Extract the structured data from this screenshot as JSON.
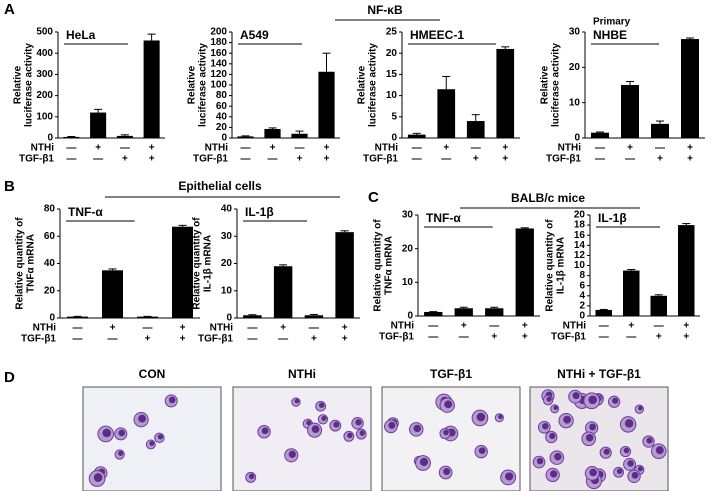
{
  "panel_labels": [
    "A",
    "B",
    "C",
    "D"
  ],
  "groups": [
    "NF-κB",
    "Epithelial cells",
    "BALB/c mice"
  ],
  "images": [
    {
      "label": "CON"
    },
    {
      "label": "NTHi"
    },
    {
      "label": "TGF-β1"
    },
    {
      "label": "NTHi + TGF-β1"
    }
  ],
  "chart_data": [
    {
      "type": "bar",
      "title": "HeLa",
      "ylabel": [
        "Relative",
        "luciferase activity"
      ],
      "color": "#000000",
      "conditions": [
        {
          "name": "NTHi",
          "values": [
            "—",
            "+",
            "—",
            "+"
          ]
        },
        {
          "name": "TGF-β1",
          "values": [
            "—",
            "—",
            "+",
            "+"
          ]
        }
      ],
      "values": [
        5,
        120,
        10,
        460
      ],
      "errors": [
        2,
        15,
        5,
        30
      ],
      "ylim": [
        0,
        500
      ],
      "yticks": [
        0,
        100,
        200,
        300,
        400,
        500
      ]
    },
    {
      "type": "bar",
      "title": "A549",
      "ylabel": [
        "Relative",
        "luciferase activity"
      ],
      "color": "#000000",
      "conditions": [
        {
          "name": "NTHi",
          "values": [
            "—",
            "+",
            "—",
            "+"
          ]
        },
        {
          "name": "TGF-β1",
          "values": [
            "—",
            "—",
            "+",
            "+"
          ]
        }
      ],
      "values": [
        3,
        17,
        8,
        125
      ],
      "errors": [
        1,
        2,
        5,
        35
      ],
      "ylim": [
        0,
        200
      ],
      "yticks": [
        0,
        20,
        40,
        60,
        80,
        100,
        120,
        140,
        160,
        180,
        200
      ]
    },
    {
      "type": "bar",
      "title": "HMEEC-1",
      "ylabel": [
        "Relative",
        "luciferase activity"
      ],
      "color": "#000000",
      "conditions": [
        {
          "name": "NTHi",
          "values": [
            "—",
            "+",
            "—",
            "+"
          ]
        },
        {
          "name": "TGF-β1",
          "values": [
            "—",
            "—",
            "+",
            "+"
          ]
        }
      ],
      "values": [
        0.8,
        11.5,
        4,
        21
      ],
      "errors": [
        0.3,
        3,
        1.5,
        0.5
      ],
      "ylim": [
        0,
        25
      ],
      "yticks": [
        0,
        5,
        10,
        15,
        20,
        25
      ]
    },
    {
      "type": "bar",
      "title": "NHBE",
      "subtitle": "Primary",
      "ylabel": [
        "Relative",
        "luciferase activity"
      ],
      "color": "#000000",
      "conditions": [
        {
          "name": "NTHi",
          "values": [
            "—",
            "+",
            "—",
            "+"
          ]
        },
        {
          "name": "TGF-β1",
          "values": [
            "—",
            "—",
            "+",
            "+"
          ]
        }
      ],
      "values": [
        1.5,
        15,
        4,
        28
      ],
      "errors": [
        0.2,
        1,
        0.8,
        0.3
      ],
      "ylim": [
        0,
        30
      ],
      "yticks": [
        0,
        10,
        20,
        30
      ]
    },
    {
      "type": "bar",
      "title": "TNF-α",
      "ylabel": [
        "Relative quantity of",
        "TNFα mRNA"
      ],
      "color": "#000000",
      "conditions": [
        {
          "name": "NTHi",
          "values": [
            "—",
            "+",
            "—",
            "+"
          ]
        },
        {
          "name": "TGF-β1",
          "values": [
            "—",
            "—",
            "+",
            "+"
          ]
        }
      ],
      "values": [
        1,
        35,
        1,
        67
      ],
      "errors": [
        0.2,
        1,
        0.2,
        1
      ],
      "ylim": [
        0,
        80
      ],
      "yticks": [
        0,
        20,
        40,
        60,
        80
      ]
    },
    {
      "type": "bar",
      "title": "IL-1β",
      "ylabel": [
        "Relative quantity of",
        "IL-1β mRNA"
      ],
      "color": "#000000",
      "conditions": [
        {
          "name": "NTHi",
          "values": [
            "—",
            "+",
            "—",
            "+"
          ]
        },
        {
          "name": "TGF-β1",
          "values": [
            "—",
            "—",
            "+",
            "+"
          ]
        }
      ],
      "values": [
        1,
        19,
        1,
        31.5
      ],
      "errors": [
        0.2,
        0.5,
        0.3,
        0.5
      ],
      "ylim": [
        0,
        40
      ],
      "yticks": [
        0,
        10,
        20,
        30,
        40
      ]
    },
    {
      "type": "bar",
      "title": "TNF-α",
      "ylabel": [
        "Relative quantity of",
        "TNFα mRNA"
      ],
      "color": "#000000",
      "conditions": [
        {
          "name": "NTHi",
          "values": [
            "—",
            "+",
            "—",
            "+"
          ]
        },
        {
          "name": "TGF-β1",
          "values": [
            "—",
            "—",
            "+",
            "+"
          ]
        }
      ],
      "values": [
        1.2,
        2.3,
        2.3,
        26
      ],
      "errors": [
        0.1,
        0.3,
        0.3,
        0.2
      ],
      "ylim": [
        0,
        30
      ],
      "yticks": [
        0,
        10,
        20,
        30
      ]
    },
    {
      "type": "bar",
      "title": "IL-1β",
      "ylabel": [
        "Relative quantity of",
        "IL-1β mRNA"
      ],
      "color": "#000000",
      "conditions": [
        {
          "name": "NTHi",
          "values": [
            "—",
            "+",
            "—",
            "+"
          ]
        },
        {
          "name": "TGF-β1",
          "values": [
            "—",
            "—",
            "+",
            "+"
          ]
        }
      ],
      "values": [
        1.2,
        9,
        4,
        18
      ],
      "errors": [
        0.1,
        0.2,
        0.2,
        0.3
      ],
      "ylim": [
        0,
        20
      ],
      "yticks": [
        0,
        2,
        4,
        6,
        8,
        10,
        12,
        14,
        16,
        18,
        20
      ]
    }
  ]
}
